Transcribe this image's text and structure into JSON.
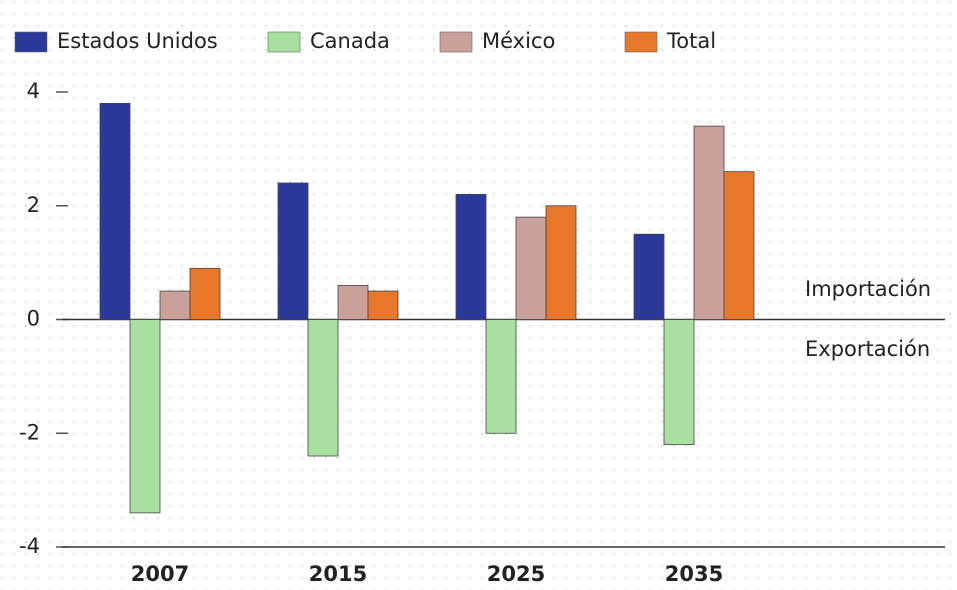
{
  "chart_data": {
    "type": "bar",
    "categories": [
      "2007",
      "2015",
      "2025",
      "2035"
    ],
    "series": [
      {
        "name": "Estados Unidos",
        "color": "#2b3a9a",
        "values": [
          3.8,
          2.4,
          2.2,
          1.5
        ]
      },
      {
        "name": "Canada",
        "color": "#a8e0a0",
        "values": [
          -3.4,
          -2.4,
          -2.0,
          -2.2
        ]
      },
      {
        "name": "México",
        "color": "#c9a09a",
        "values": [
          0.5,
          0.6,
          1.8,
          3.4
        ]
      },
      {
        "name": "Total",
        "color": "#e8772a",
        "values": [
          0.9,
          0.5,
          2.0,
          2.6
        ]
      }
    ],
    "annotations": [
      "Importación",
      "Exportación"
    ],
    "ylim": [
      -4,
      4
    ],
    "yticks": [
      -4,
      -2,
      0,
      2,
      4
    ],
    "legend": "top"
  }
}
